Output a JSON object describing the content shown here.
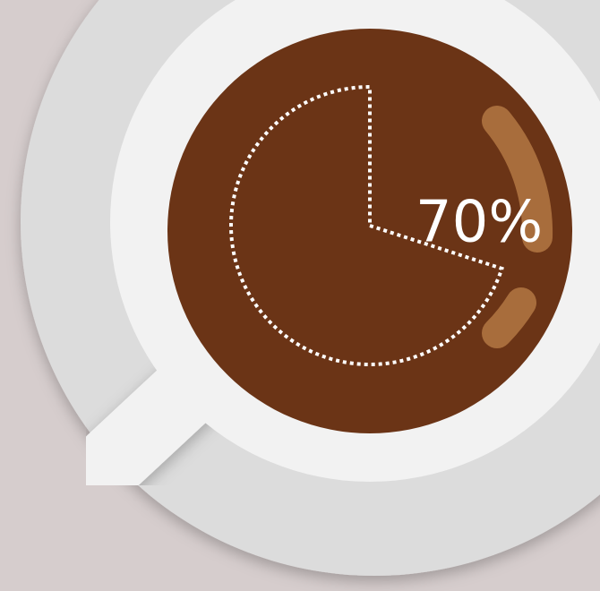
{
  "chart_data": {
    "type": "pie",
    "values": [
      70
    ],
    "value_labels": [
      "70%"
    ]
  }
}
